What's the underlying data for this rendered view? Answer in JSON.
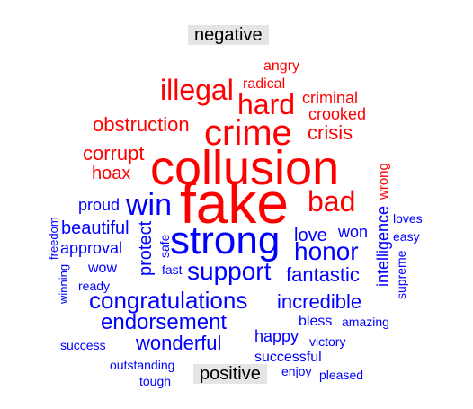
{
  "groups": {
    "negative": {
      "label": "negative",
      "color": "#ff0000"
    },
    "positive": {
      "label": "positive",
      "color": "#0000ff"
    }
  },
  "words": [
    {
      "text": "collusion",
      "group": "negative"
    },
    {
      "text": "fake",
      "group": "negative"
    },
    {
      "text": "crime",
      "group": "negative"
    },
    {
      "text": "hard",
      "group": "negative"
    },
    {
      "text": "illegal",
      "group": "negative"
    },
    {
      "text": "bad",
      "group": "negative"
    },
    {
      "text": "obstruction",
      "group": "negative"
    },
    {
      "text": "corrupt",
      "group": "negative"
    },
    {
      "text": "crisis",
      "group": "negative"
    },
    {
      "text": "crooked",
      "group": "negative"
    },
    {
      "text": "criminal",
      "group": "negative"
    },
    {
      "text": "hoax",
      "group": "negative"
    },
    {
      "text": "radical",
      "group": "negative"
    },
    {
      "text": "angry",
      "group": "negative"
    },
    {
      "text": "wrong",
      "group": "negative"
    },
    {
      "text": "strong",
      "group": "positive"
    },
    {
      "text": "win",
      "group": "positive"
    },
    {
      "text": "support",
      "group": "positive"
    },
    {
      "text": "congratulations",
      "group": "positive"
    },
    {
      "text": "honor",
      "group": "positive"
    },
    {
      "text": "endorsement",
      "group": "positive"
    },
    {
      "text": "fantastic",
      "group": "positive"
    },
    {
      "text": "incredible",
      "group": "positive"
    },
    {
      "text": "wonderful",
      "group": "positive"
    },
    {
      "text": "love",
      "group": "positive"
    },
    {
      "text": "won",
      "group": "positive"
    },
    {
      "text": "beautiful",
      "group": "positive"
    },
    {
      "text": "protect",
      "group": "positive"
    },
    {
      "text": "approval",
      "group": "positive"
    },
    {
      "text": "intelligence",
      "group": "positive"
    },
    {
      "text": "happy",
      "group": "positive"
    },
    {
      "text": "proud",
      "group": "positive"
    },
    {
      "text": "successful",
      "group": "positive"
    },
    {
      "text": "bless",
      "group": "positive"
    },
    {
      "text": "wow",
      "group": "positive"
    },
    {
      "text": "ready",
      "group": "positive"
    },
    {
      "text": "fast",
      "group": "positive"
    },
    {
      "text": "safe",
      "group": "positive"
    },
    {
      "text": "freedom",
      "group": "positive"
    },
    {
      "text": "winning",
      "group": "positive"
    },
    {
      "text": "loves",
      "group": "positive"
    },
    {
      "text": "easy",
      "group": "positive"
    },
    {
      "text": "supreme",
      "group": "positive"
    },
    {
      "text": "amazing",
      "group": "positive"
    },
    {
      "text": "victory",
      "group": "positive"
    },
    {
      "text": "success",
      "group": "positive"
    },
    {
      "text": "outstanding",
      "group": "positive"
    },
    {
      "text": "tough",
      "group": "positive"
    },
    {
      "text": "enjoy",
      "group": "positive"
    },
    {
      "text": "pleased",
      "group": "positive"
    }
  ]
}
